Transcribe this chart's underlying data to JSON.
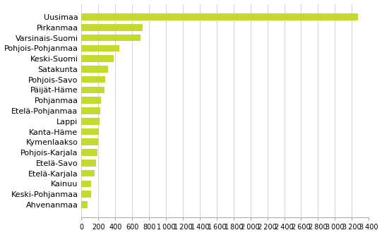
{
  "categories": [
    "Ahvenanmaa",
    "Keski-Pohjanmaa",
    "Kainuu",
    "Etelä-Karjala",
    "Etelä-Savo",
    "Pohjois-Karjala",
    "Kymenlaakso",
    "Kanta-Häme",
    "Lappi",
    "Etelä-Pohjanmaa",
    "Pohjanmaa",
    "Päijät-Häme",
    "Pohjois-Savo",
    "Satakunta",
    "Keski-Suomi",
    "Pohjois-Pohjanmaa",
    "Varsinais-Suomi",
    "Pirkanmaa",
    "Uusimaa"
  ],
  "values": [
    75,
    110,
    115,
    155,
    175,
    185,
    195,
    205,
    215,
    225,
    230,
    275,
    280,
    310,
    380,
    450,
    700,
    720,
    3270
  ],
  "bar_color": "#c5d92d",
  "background_color": "#ffffff",
  "xlim": [
    0,
    3400
  ],
  "xticks": [
    0,
    200,
    400,
    600,
    800,
    1000,
    1200,
    1400,
    1600,
    1800,
    2000,
    2200,
    2400,
    2600,
    2800,
    3000,
    3200,
    3400
  ],
  "grid_color": "#cccccc",
  "tick_fontsize": 7,
  "label_fontsize": 8
}
